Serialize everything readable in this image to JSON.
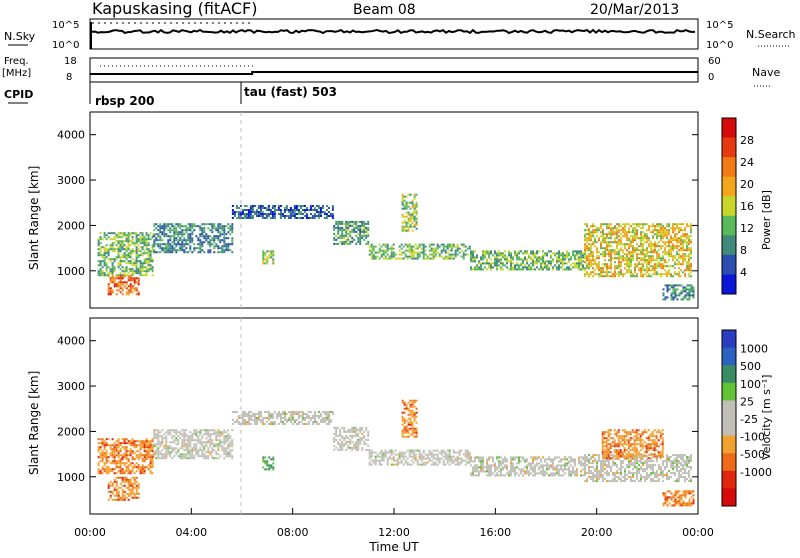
{
  "header": {
    "station": "Kapuskasing (fitACF)",
    "beam": "Beam 08",
    "date": "20/Mar/2013"
  },
  "top_panels": {
    "nsky": {
      "label": "N.Sky",
      "ticks": [
        "10^5",
        "10^0"
      ]
    },
    "nsearch": {
      "label": "N.Search",
      "ticks": [
        "10^5",
        "10^0"
      ]
    },
    "freq": {
      "label_line1": "Freq.",
      "label_line2": "[MHz]",
      "ticks": [
        "18",
        "8"
      ]
    },
    "nave": {
      "label": "Nave",
      "ticks": [
        "60",
        "0"
      ]
    },
    "cpid": {
      "label": "CPID",
      "modes": [
        {
          "name": "rbsp 200",
          "start_hour": 0
        },
        {
          "name": "tau (fast) 503",
          "start_hour": 6.4
        }
      ]
    }
  },
  "colors": {
    "power": [
      "#0a17d6",
      "#2b4fb0",
      "#3f8a7a",
      "#58b85a",
      "#c8d62a",
      "#f2a51d",
      "#f07a14",
      "#e83a10",
      "#d60a0a"
    ],
    "velocity": [
      "#2a3cbf",
      "#2b62c0",
      "#3a8c64",
      "#62c236",
      "#c0c0b8",
      "#c0c0b8",
      "#f2a030",
      "#ee6a16",
      "#e0260c",
      "#d60a0a"
    ]
  },
  "chart_data": [
    {
      "type": "heatmap",
      "name": "power",
      "ylabel": "Slant Range [km]",
      "ylim": [
        180,
        4500
      ],
      "xlim": [
        0,
        24
      ],
      "y_ticks": [
        "1000",
        "2000",
        "3000",
        "4000"
      ],
      "colorbar": {
        "label": "Power [dB]",
        "ticks": [
          "4",
          "8",
          "12",
          "16",
          "20",
          "24",
          "28"
        ],
        "range": [
          0,
          32
        ]
      },
      "echo_bands": [
        {
          "t0": 0.3,
          "t1": 2.5,
          "lo": 900,
          "hi": 1850,
          "intensity": 12
        },
        {
          "t0": 0.7,
          "t1": 1.9,
          "lo": 480,
          "hi": 900,
          "intensity": 26
        },
        {
          "t0": 2.5,
          "t1": 5.6,
          "lo": 1400,
          "hi": 2050,
          "intensity": 8
        },
        {
          "t0": 5.6,
          "t1": 9.6,
          "lo": 2150,
          "hi": 2450,
          "intensity": 5
        },
        {
          "t0": 9.6,
          "t1": 11.0,
          "lo": 1600,
          "hi": 2100,
          "intensity": 10
        },
        {
          "t0": 11.0,
          "t1": 15.0,
          "lo": 1250,
          "hi": 1600,
          "intensity": 12
        },
        {
          "t0": 15.0,
          "t1": 19.5,
          "lo": 1050,
          "hi": 1450,
          "intensity": 12
        },
        {
          "t0": 19.5,
          "t1": 23.7,
          "lo": 900,
          "hi": 2050,
          "intensity": 18
        },
        {
          "t0": 22.6,
          "t1": 23.8,
          "lo": 380,
          "hi": 700,
          "intensity": 8
        },
        {
          "t0": 12.3,
          "t1": 12.9,
          "lo": 1900,
          "hi": 2700,
          "intensity": 14
        },
        {
          "t0": 6.8,
          "t1": 7.2,
          "lo": 1150,
          "hi": 1450,
          "intensity": 14
        }
      ]
    },
    {
      "type": "heatmap",
      "name": "velocity",
      "ylabel": "Slant Range [km]",
      "xlabel": "Time UT",
      "ylim": [
        180,
        4500
      ],
      "xlim": [
        0,
        24
      ],
      "y_ticks": [
        "1000",
        "2000",
        "3000",
        "4000"
      ],
      "x_ticks": [
        "00:00",
        "04:00",
        "08:00",
        "12:00",
        "16:00",
        "20:00",
        "00:00"
      ],
      "colorbar": {
        "label": "Velocity [m s⁻¹]",
        "ticks": [
          "1000",
          "500",
          "100",
          "25",
          "-25",
          "-100",
          "-500",
          "-1000"
        ]
      },
      "echo_bands": [
        {
          "t0": 0.3,
          "t1": 2.5,
          "lo": 1100,
          "hi": 1850,
          "velocity": -300
        },
        {
          "t0": 0.7,
          "t1": 1.9,
          "lo": 480,
          "hi": 1000,
          "velocity": -150
        },
        {
          "t0": 2.5,
          "t1": 5.6,
          "lo": 1400,
          "hi": 2050,
          "velocity": 0
        },
        {
          "t0": 5.6,
          "t1": 9.6,
          "lo": 2150,
          "hi": 2450,
          "velocity": 0
        },
        {
          "t0": 9.6,
          "t1": 11.0,
          "lo": 1600,
          "hi": 2100,
          "velocity": 0
        },
        {
          "t0": 11.0,
          "t1": 15.0,
          "lo": 1250,
          "hi": 1600,
          "velocity": 0
        },
        {
          "t0": 15.0,
          "t1": 19.5,
          "lo": 1050,
          "hi": 1450,
          "velocity": 0
        },
        {
          "t0": 19.5,
          "t1": 23.7,
          "lo": 900,
          "hi": 1500,
          "velocity": 0
        },
        {
          "t0": 20.2,
          "t1": 22.6,
          "lo": 1400,
          "hi": 2050,
          "velocity": -300
        },
        {
          "t0": 22.6,
          "t1": 23.8,
          "lo": 380,
          "hi": 700,
          "velocity": -300
        },
        {
          "t0": 12.3,
          "t1": 12.9,
          "lo": 1900,
          "hi": 2700,
          "velocity": -150
        },
        {
          "t0": 6.8,
          "t1": 7.2,
          "lo": 1150,
          "hi": 1450,
          "velocity": 200
        }
      ]
    }
  ]
}
